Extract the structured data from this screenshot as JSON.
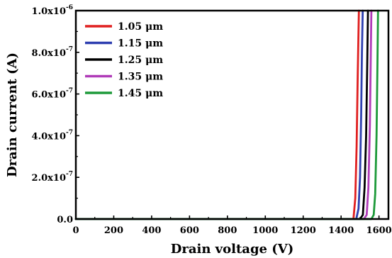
{
  "chart_data": {
    "type": "line",
    "title": "",
    "xlabel": "Drain voltage (V)",
    "ylabel": "Drain current (A)",
    "xlim": [
      0,
      1650
    ],
    "ylim": [
      0,
      1e-06
    ],
    "x_ticks": [
      0,
      200,
      400,
      600,
      800,
      1000,
      1200,
      1400,
      1600
    ],
    "x_tick_labels": [
      "0",
      "200",
      "400",
      "600",
      "800",
      "1000",
      "1200",
      "1400",
      "1600"
    ],
    "y_ticks": [
      0,
      2e-07,
      4e-07,
      6e-07,
      8e-07,
      1e-06
    ],
    "y_tick_labels": [
      {
        "mantissa": "0.0",
        "exponent": ""
      },
      {
        "mantissa": "2.0x10",
        "exponent": "-7"
      },
      {
        "mantissa": "4.0x10",
        "exponent": "-7"
      },
      {
        "mantissa": "6.0x10",
        "exponent": "-7"
      },
      {
        "mantissa": "8.0x10",
        "exponent": "-7"
      },
      {
        "mantissa": "1.0x10",
        "exponent": "-6"
      }
    ],
    "grid": false,
    "legend_position": "top-left",
    "series": [
      {
        "name": "1.05 μm",
        "color": "#e02020",
        "points": [
          [
            0,
            0
          ],
          [
            1465,
            0
          ],
          [
            1475,
            1e-07
          ],
          [
            1482,
            3.5e-07
          ],
          [
            1488,
            7e-07
          ],
          [
            1494,
            1e-06
          ]
        ]
      },
      {
        "name": "1.15 μm",
        "color": "#2e3fb0",
        "points": [
          [
            0,
            0
          ],
          [
            1480,
            0
          ],
          [
            1492,
            5e-08
          ],
          [
            1500,
            2e-07
          ],
          [
            1506,
            5e-07
          ],
          [
            1510,
            8e-07
          ],
          [
            1514,
            1e-06
          ]
        ]
      },
      {
        "name": "1.25 μm",
        "color": "#000000",
        "points": [
          [
            0,
            0
          ],
          [
            1500,
            0
          ],
          [
            1515,
            2e-08
          ],
          [
            1524,
            1.5e-07
          ],
          [
            1532,
            4e-07
          ],
          [
            1538,
            7.5e-07
          ],
          [
            1542,
            1e-06
          ]
        ]
      },
      {
        "name": "1.35 μm",
        "color": "#b03bb8",
        "points": [
          [
            0,
            0
          ],
          [
            1520,
            0
          ],
          [
            1535,
            2e-08
          ],
          [
            1544,
            1.5e-07
          ],
          [
            1552,
            4.5e-07
          ],
          [
            1557,
            8e-07
          ],
          [
            1560,
            1e-06
          ]
        ]
      },
      {
        "name": "1.45 μm",
        "color": "#1e9a3a",
        "points": [
          [
            0,
            0
          ],
          [
            1560,
            0
          ],
          [
            1572,
            2e-08
          ],
          [
            1580,
            1.2e-07
          ],
          [
            1587,
            4e-07
          ],
          [
            1592,
            7.5e-07
          ],
          [
            1595,
            1e-06
          ]
        ]
      }
    ]
  }
}
